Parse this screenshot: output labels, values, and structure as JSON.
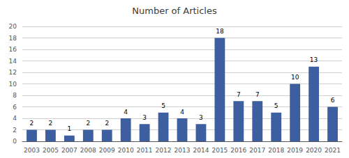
{
  "chart_data": {
    "type": "bar",
    "title": "Number of Articles",
    "categories": [
      "2003",
      "2005",
      "2007",
      "2008",
      "2009",
      "2010",
      "2011",
      "2012",
      "2013",
      "2014",
      "2015",
      "2016",
      "2017",
      "2018",
      "2019",
      "2020",
      "2021"
    ],
    "values": [
      2,
      2,
      1,
      2,
      2,
      4,
      3,
      5,
      4,
      3,
      18,
      7,
      7,
      5,
      10,
      13,
      6
    ],
    "color": "#3d5fa0",
    "ylim": [
      0,
      20
    ],
    "yticks": [
      0,
      2,
      4,
      6,
      8,
      10,
      12,
      14,
      16,
      18,
      20
    ],
    "grid": true,
    "data_labels": true
  }
}
